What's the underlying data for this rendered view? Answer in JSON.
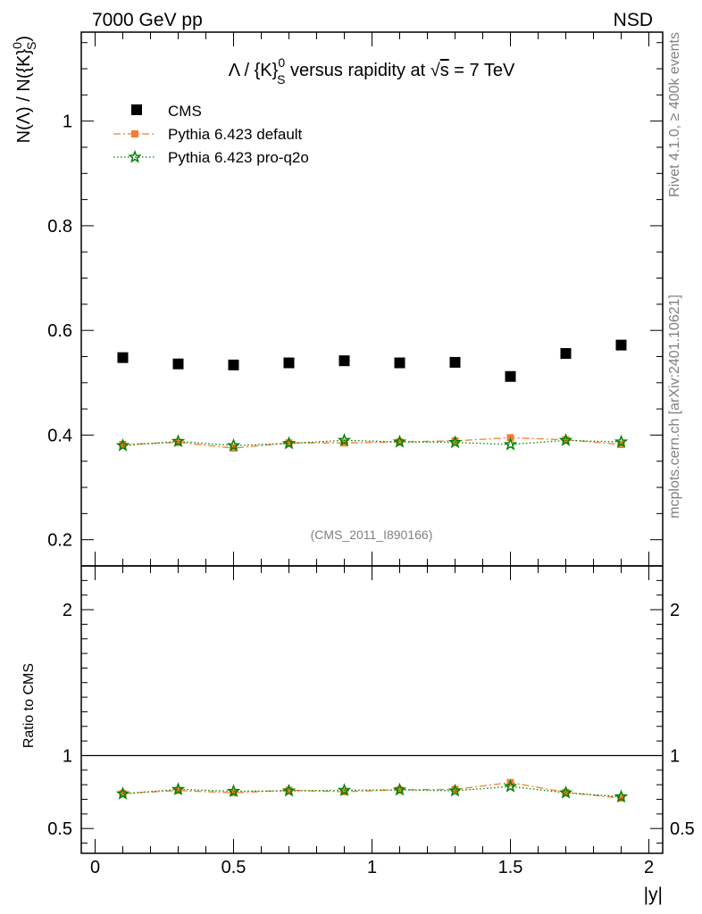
{
  "header": {
    "left": "7000 GeV pp",
    "right": "NSD"
  },
  "side_text": {
    "rivet": "Rivet 4.1.0, ≥ 400k events",
    "mcplots": "mcplots.cern.ch [arXiv:2401.10621]"
  },
  "chart_data": [
    {
      "type": "scatter",
      "title": "Λ / {K}⁰ₛ versus rapidity at √s = 7 TeV",
      "title_parts": {
        "pre": "Λ / {K}",
        "sup": "0",
        "sub": "S",
        "post": " versus rapidity at ",
        "sqrt": "√",
        "s": "s",
        "tail": " = 7 TeV"
      },
      "ylabel": "N(Λ)  /  N({K}⁰ₛ)",
      "ylabel_parts": {
        "pre": "N(Λ)  /  N({K}",
        "sup": "0",
        "sub": "S",
        "post": ")"
      },
      "analysis_id": "(CMS_2011_I890166)",
      "xlim": [
        -0.05,
        2.05
      ],
      "ylim": [
        0.15,
        1.17
      ],
      "yticks": [
        0.2,
        0.4,
        0.6,
        0.8,
        1.0
      ],
      "ytick_labels": [
        "0.2",
        "0.4",
        "0.6",
        "0.8",
        "1"
      ],
      "x": [
        0.1,
        0.3,
        0.5,
        0.7,
        0.9,
        1.1,
        1.3,
        1.5,
        1.7,
        1.9
      ],
      "series": [
        {
          "name": "CMS",
          "marker": "square",
          "color": "#000000",
          "values": [
            0.548,
            0.536,
            0.534,
            0.538,
            0.542,
            0.538,
            0.539,
            0.512,
            0.556,
            0.572
          ]
        },
        {
          "name": "Pythia 6.423 default",
          "marker": "square-small",
          "color": "#f08030",
          "line": "dashdot",
          "values": [
            0.382,
            0.386,
            0.375,
            0.385,
            0.385,
            0.387,
            0.389,
            0.395,
            0.391,
            0.382
          ]
        },
        {
          "name": "Pythia 6.423 pro-q2o",
          "marker": "star",
          "color": "#008000",
          "line": "dotted",
          "values": [
            0.38,
            0.388,
            0.38,
            0.384,
            0.39,
            0.387,
            0.386,
            0.382,
            0.39,
            0.387
          ]
        }
      ]
    },
    {
      "type": "line",
      "ylabel": "Ratio to CMS",
      "xlabel": "|y|",
      "xlim": [
        -0.05,
        2.05
      ],
      "ylim": [
        0.33,
        2.3
      ],
      "yticks": [
        0.5,
        1,
        2
      ],
      "ytick_labels": [
        "0.5",
        "1",
        "2"
      ],
      "xticks": [
        0,
        0.5,
        1,
        1.5,
        2
      ],
      "xtick_labels": [
        "0",
        "0.5",
        "1",
        "1.5",
        "2"
      ],
      "x": [
        0.1,
        0.3,
        0.5,
        0.7,
        0.9,
        1.1,
        1.3,
        1.5,
        1.7,
        1.9
      ],
      "reference_line": 1,
      "series": [
        {
          "name": "Pythia 6.423 default",
          "color": "#f08030",
          "line": "dashdot",
          "values": [
            0.74,
            0.76,
            0.745,
            0.762,
            0.752,
            0.765,
            0.768,
            0.815,
            0.748,
            0.708
          ]
        },
        {
          "name": "Pythia 6.423 pro-q2o",
          "color": "#008000",
          "line": "dotted",
          "values": [
            0.738,
            0.768,
            0.755,
            0.758,
            0.762,
            0.765,
            0.758,
            0.788,
            0.745,
            0.718
          ]
        }
      ]
    }
  ]
}
